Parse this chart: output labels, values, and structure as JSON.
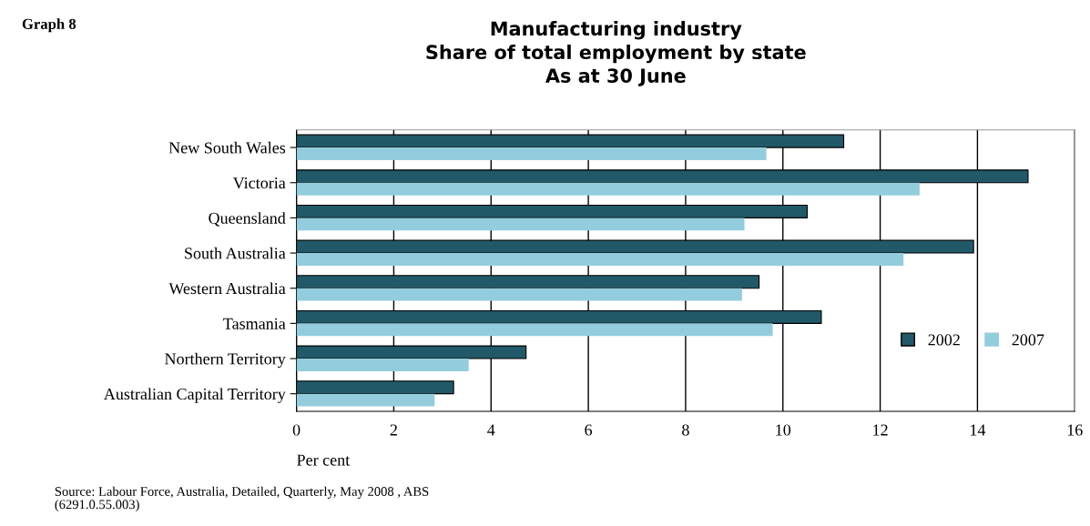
{
  "chart_data": {
    "type": "bar",
    "orientation": "horizontal",
    "title": "Manufacturing industry\nShare of total employment by state\nAs at 30 June",
    "xlabel": "Per cent",
    "categories": [
      "New South Wales",
      "Victoria",
      "Queensland",
      "South Australia",
      "Western Australia",
      "Tasmania",
      "Northern Territory",
      "Australian Capital Territory"
    ],
    "series": [
      {
        "name": "2002",
        "color": "#215968",
        "values": [
          11.25,
          15.04,
          10.5,
          13.92,
          9.51,
          10.79,
          4.72,
          3.23
        ]
      },
      {
        "name": "2007",
        "color": "#93cddd",
        "values": [
          9.66,
          12.81,
          9.21,
          12.48,
          9.16,
          9.79,
          3.54,
          2.84
        ]
      }
    ],
    "xlim": [
      0,
      16
    ],
    "xticks": [
      0,
      2,
      4,
      6,
      8,
      10,
      12,
      14,
      16
    ],
    "grid": "x",
    "legend": "right",
    "annotations": [
      "Graph 8",
      "Source: Labour Force, Australia, Detailed, Quarterly, May 2008 , ABS\n(6291.0.55.003)"
    ]
  }
}
